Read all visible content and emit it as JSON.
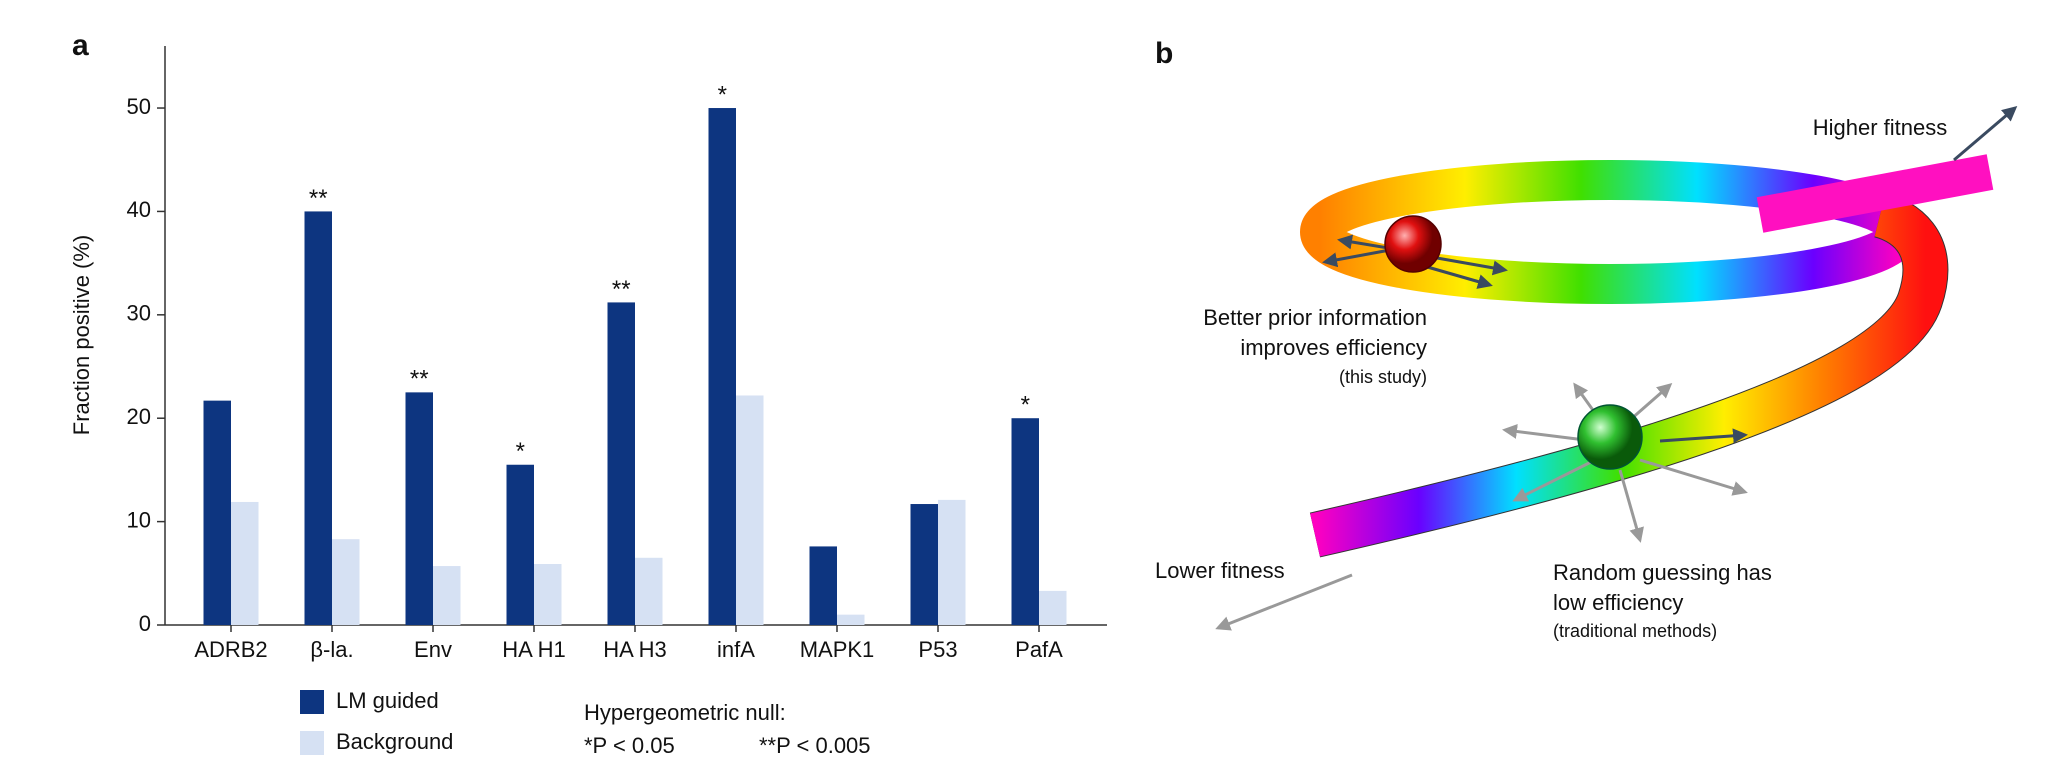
{
  "chart_data": {
    "type": "bar",
    "panel_label": "a",
    "y_label": "Fraction positive (%)",
    "categories": [
      "ADRB2",
      "β-la.",
      "Env",
      "HA H1",
      "HA H3",
      "infA",
      "MAPK1",
      "P53",
      "PafA"
    ],
    "series": [
      {
        "name": "LM guided",
        "color": "#0d3580",
        "values": [
          21.7,
          40,
          22.5,
          15.5,
          31.2,
          50,
          7.6,
          11.7,
          20
        ],
        "significance": [
          null,
          "**",
          "**",
          "*",
          "**",
          "*",
          null,
          null,
          "*"
        ]
      },
      {
        "name": "Background",
        "color": "#d6e1f3",
        "values": [
          11.9,
          8.3,
          5.7,
          5.9,
          6.5,
          22.2,
          1.0,
          12.1,
          3.3
        ]
      }
    ],
    "ylim": [
      0,
      56
    ],
    "yticks": [
      0,
      10,
      20,
      30,
      40,
      50
    ],
    "stat_note": {
      "title": "Hypergeometric null:",
      "levels": [
        "*P < 0.05",
        "**P < 0.005"
      ]
    }
  },
  "diagram": {
    "panel_label": "b",
    "higher": "Higher fitness",
    "lower": "Lower fitness",
    "prior": [
      "Better prior information",
      "improves efficiency",
      "(this study)"
    ],
    "random": [
      "Random guessing has",
      "low efficiency",
      "(traditional methods)"
    ]
  }
}
